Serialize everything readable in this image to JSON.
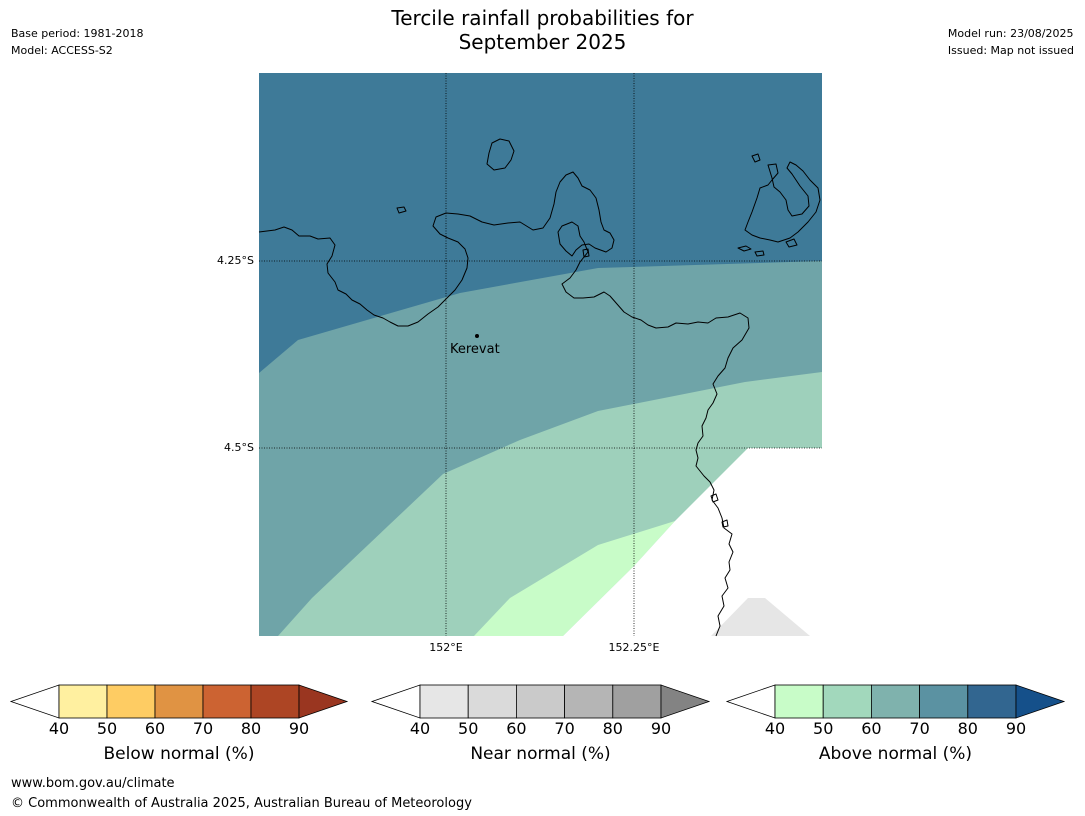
{
  "title": [
    "Tercile rainfall probabilities for",
    "September 2025"
  ],
  "meta_left": [
    "Base period: 1981-2018",
    "Model: ACCESS-S2"
  ],
  "meta_right": [
    "Model run: 23/08/2025",
    "Issued: Map not issued"
  ],
  "map": {
    "place": "Kerevat",
    "lat_labels": [
      "4.25°S",
      "4.5°S"
    ],
    "lon_labels": [
      "152°E",
      "152.25°E"
    ],
    "colors": {
      "above_80_90": "#3e7a98",
      "above_70_80": "#6fa4a8",
      "above_60_70": "#9ed0bb",
      "above_50_60": "#c8fcc8",
      "near_50_60": "#e6e6e6",
      "no_data": "#ffffff"
    }
  },
  "legends": [
    {
      "label": "Below normal (%)",
      "ticks": [
        "40",
        "50",
        "60",
        "70",
        "80",
        "90"
      ],
      "colors": [
        "#fff0a0",
        "#fecc63",
        "#e09343",
        "#cc6332",
        "#ad4524"
      ],
      "end_color": "#9a3620"
    },
    {
      "label": "Near normal (%)",
      "ticks": [
        "40",
        "50",
        "60",
        "70",
        "80",
        "90"
      ],
      "colors": [
        "#e6e6e6",
        "#dadada",
        "#cacaca",
        "#b5b5b5",
        "#a0a0a0"
      ],
      "end_color": "#838383"
    },
    {
      "label": "Above normal (%)",
      "ticks": [
        "40",
        "50",
        "60",
        "70",
        "80",
        "90"
      ],
      "colors": [
        "#c8fcc8",
        "#a2d8bc",
        "#7fb2ad",
        "#5b92a2",
        "#326690"
      ],
      "end_color": "#15508a"
    }
  ],
  "footer": [
    "www.bom.gov.au/climate",
    "© Commonwealth of Australia 2025, Australian Bureau of Meteorology"
  ]
}
